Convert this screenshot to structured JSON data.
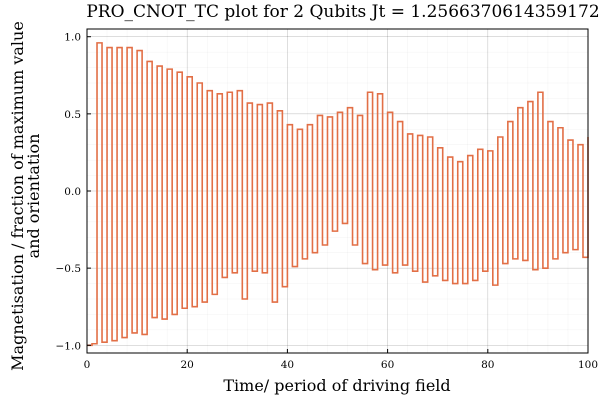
{
  "chart_data": {
    "type": "line",
    "step": true,
    "title": "PRO_CNOT_TC plot for 2 Qubits Jt = 1.2566370614359172",
    "xlabel": "Time/ period of driving field",
    "ylabel_lines": [
      "Magnetisation / fraction of maximum value",
      "and orientation"
    ],
    "xlim": [
      0,
      100
    ],
    "ylim": [
      -1.05,
      1.05
    ],
    "xticks": [
      0,
      20,
      40,
      60,
      80,
      100
    ],
    "yticks": [
      -1.0,
      -0.5,
      0.0,
      0.5,
      1.0
    ],
    "xtick_labels": [
      "0",
      "20",
      "40",
      "60",
      "80",
      "100"
    ],
    "ytick_labels": [
      "−1.0",
      "−0.5",
      "0.0",
      "0.5",
      "1.0"
    ],
    "grid": true,
    "minor_grid": true,
    "legend": "none",
    "series_color": "#e26f46",
    "series": [
      {
        "x": [
          0,
          1,
          2,
          3,
          4,
          5,
          6,
          7,
          8,
          9,
          10,
          11,
          12,
          13,
          14,
          15,
          16,
          17,
          18,
          19,
          20,
          21,
          22,
          23,
          24,
          25,
          26,
          27,
          28,
          29,
          30,
          31,
          32,
          33,
          34,
          35,
          36,
          37,
          38,
          39,
          40,
          41,
          42,
          43,
          44,
          45,
          46,
          47,
          48,
          49,
          50,
          51,
          52,
          53,
          54,
          55,
          56,
          57,
          58,
          59,
          60,
          61,
          62,
          63,
          64,
          65,
          66,
          67,
          68,
          69,
          70,
          71,
          72,
          73,
          74,
          75,
          76,
          77,
          78,
          79,
          80,
          81,
          82,
          83,
          84,
          85,
          86,
          87,
          88,
          89,
          90,
          91,
          92,
          93,
          94,
          95,
          96,
          97,
          98,
          99,
          100
        ],
        "y": [
          -1.0,
          -0.99,
          0.96,
          -0.98,
          0.93,
          -0.97,
          0.93,
          -0.95,
          0.93,
          -0.92,
          0.91,
          -0.93,
          0.84,
          -0.82,
          0.81,
          -0.83,
          0.79,
          -0.8,
          0.77,
          -0.76,
          0.74,
          -0.75,
          0.7,
          -0.72,
          0.65,
          -0.67,
          0.63,
          -0.56,
          0.64,
          -0.53,
          0.65,
          -0.7,
          0.57,
          -0.52,
          0.56,
          -0.53,
          0.57,
          -0.72,
          0.52,
          -0.62,
          0.43,
          -0.49,
          0.4,
          -0.44,
          0.43,
          -0.4,
          0.49,
          -0.35,
          0.48,
          -0.26,
          0.51,
          -0.21,
          0.54,
          -0.35,
          0.49,
          -0.47,
          0.64,
          -0.51,
          0.63,
          -0.48,
          0.51,
          -0.53,
          0.45,
          -0.48,
          0.37,
          -0.52,
          0.36,
          -0.59,
          0.35,
          -0.55,
          0.28,
          -0.58,
          0.22,
          -0.6,
          0.19,
          -0.6,
          0.23,
          -0.58,
          0.27,
          -0.52,
          0.26,
          -0.61,
          0.35,
          -0.47,
          0.45,
          -0.44,
          0.54,
          -0.45,
          0.58,
          -0.51,
          0.64,
          -0.5,
          0.45,
          -0.44,
          0.41,
          -0.4,
          0.33,
          -0.38,
          0.3,
          -0.43,
          0.35
        ]
      }
    ]
  }
}
